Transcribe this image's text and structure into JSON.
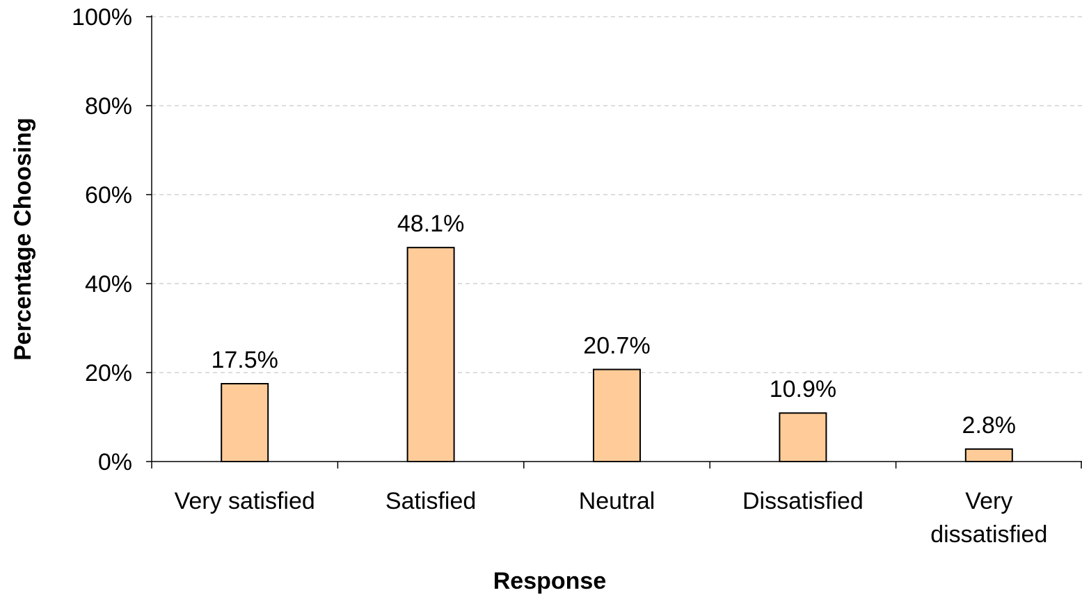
{
  "chart_data": {
    "type": "bar",
    "title": "",
    "xlabel": "Response",
    "ylabel": "Percentage Choosing",
    "categories": [
      [
        "Very satisfied"
      ],
      [
        "Satisfied"
      ],
      [
        "Neutral"
      ],
      [
        "Dissatisfied"
      ],
      [
        "Very",
        "dissatisfied"
      ]
    ],
    "values": [
      17.5,
      48.1,
      20.7,
      10.9,
      2.8
    ],
    "data_labels": [
      "17.5%",
      "48.1%",
      "20.7%",
      "10.9%",
      "2.8%"
    ],
    "ylim": [
      0,
      100
    ],
    "yticks": [
      0,
      20,
      40,
      60,
      80,
      100
    ],
    "ytick_labels": [
      "0%",
      "20%",
      "40%",
      "60%",
      "80%",
      "100%"
    ],
    "grid": true,
    "legend": "none",
    "colors": {
      "bar_fill": "#FFCC99",
      "bar_stroke": "#000000",
      "grid": "#BBBBBB",
      "axis": "#000000"
    }
  }
}
